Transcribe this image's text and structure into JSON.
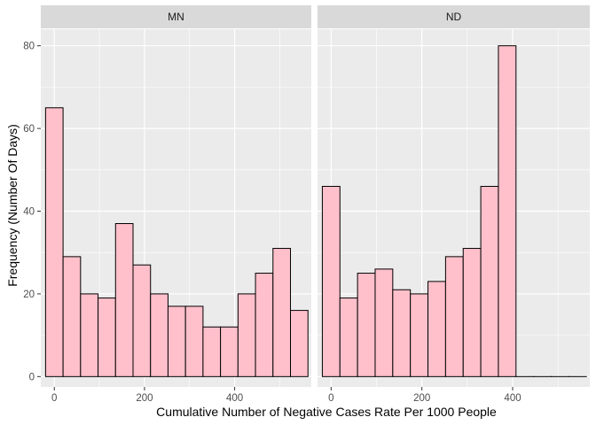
{
  "chart_data": {
    "type": "bar",
    "xlabel": "Cumulative Number of Negative Cases Rate Per 1000 People",
    "ylabel": "Frequency (Number Of Days)",
    "xlim": [
      -30,
      570
    ],
    "ylim": [
      -2.5,
      84
    ],
    "x_ticks": [
      0,
      200,
      400
    ],
    "x_minor_ticks": [
      100,
      300,
      500
    ],
    "y_ticks": [
      0,
      20,
      40,
      60,
      80
    ],
    "y_minor_ticks": [
      10,
      30,
      50,
      70
    ],
    "bin_width": 38.8,
    "grid": true,
    "bar_fill": "#FFC0CB",
    "bar_stroke": "#000000",
    "panel_bg": "#EBEBEB",
    "strip_bg": "#D9D9D9",
    "facets": [
      {
        "label": "MN",
        "bin_centers": [
          0,
          38.8,
          77.6,
          116.4,
          155.2,
          194,
          232.8,
          271.6,
          310.4,
          349.2,
          388,
          426.8,
          465.6,
          504.4,
          543.2
        ],
        "counts": [
          65,
          29,
          20,
          19,
          37,
          27,
          20,
          17,
          17,
          12,
          12,
          20,
          25,
          31,
          16
        ]
      },
      {
        "label": "ND",
        "bin_centers": [
          0,
          38.8,
          77.6,
          116.4,
          155.2,
          194,
          232.8,
          271.6,
          310.4,
          349.2,
          388,
          426.8,
          465.6,
          504.4,
          543.2
        ],
        "counts": [
          46,
          19,
          25,
          26,
          21,
          20,
          23,
          29,
          31,
          46,
          80,
          0,
          0,
          0,
          0
        ]
      }
    ]
  }
}
